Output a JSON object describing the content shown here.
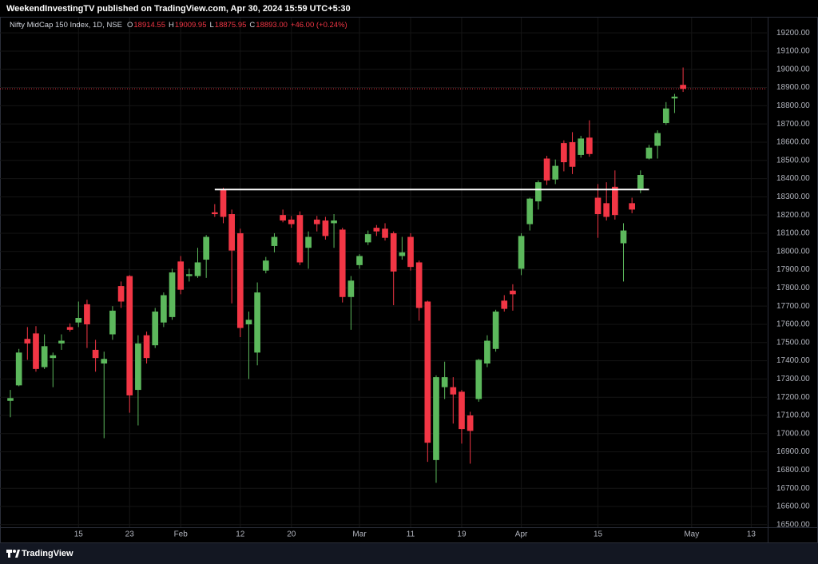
{
  "chart_data": {
    "type": "candlestick",
    "title": "WeekendInvestingTV published on TradingView.com, Apr 30, 2024 15:59 UTC+5:30",
    "symbol": "Nifty MidCap 150 Index, 1D, NSE",
    "ohlc_legend": [
      {
        "key": "O",
        "value": "18914.55"
      },
      {
        "key": "H",
        "value": "19009.95"
      },
      {
        "key": "L",
        "value": "18875.95"
      },
      {
        "key": "C",
        "value": "18893.00"
      }
    ],
    "change": "+46.00 (+0.24%)",
    "brand": "TradingView",
    "up_color": "#5cb85c",
    "down_color": "#f23645",
    "candles": {
      "open": [
        17180,
        17265,
        17520,
        17550,
        17365,
        17415,
        17495,
        17585,
        17610,
        17710,
        17460,
        17385,
        17545,
        17810,
        17865,
        17240,
        17540,
        17485,
        17610,
        17640,
        17945,
        17865,
        17865,
        17955,
        18215,
        18340,
        18205,
        18100,
        17600,
        17445,
        17895,
        18030,
        18200,
        18175,
        18200,
        18020,
        18175,
        18170,
        18155,
        18120,
        17750,
        17925,
        18050,
        18130,
        18125,
        18100,
        17975,
        18080,
        17940,
        17725,
        16855,
        17255,
        17255,
        17230,
        17100,
        17190,
        17385,
        17465,
        17730,
        17785,
        17905,
        18150,
        18275,
        18510,
        18395,
        18595,
        18600,
        18530,
        18625,
        18295,
        18265,
        18355,
        18045,
        18265,
        18345,
        18510,
        18580,
        18705,
        18840,
        18914.55
      ],
      "high": [
        17240,
        17465,
        17585,
        17590,
        17545,
        17445,
        17545,
        17605,
        17725,
        17735,
        17515,
        17450,
        17700,
        17835,
        17870,
        17540,
        17560,
        17690,
        17775,
        17905,
        17975,
        17905,
        18020,
        18090,
        18260,
        18350,
        18230,
        18125,
        17670,
        17830,
        17970,
        18100,
        18230,
        18195,
        18220,
        18110,
        18195,
        18190,
        18205,
        18130,
        17865,
        17985,
        18115,
        18145,
        18155,
        18110,
        18080,
        18100,
        17950,
        17730,
        17320,
        17395,
        17310,
        17240,
        17120,
        17410,
        17540,
        17680,
        17760,
        17820,
        18100,
        18295,
        18390,
        18525,
        18505,
        18610,
        18655,
        18635,
        18720,
        18370,
        18380,
        18445,
        18155,
        18295,
        18445,
        18585,
        18665,
        18820,
        18865,
        19009.95
      ],
      "low": [
        17090,
        17260,
        17405,
        17340,
        17355,
        17255,
        17460,
        17560,
        17585,
        17470,
        17340,
        16975,
        17515,
        17690,
        17115,
        17045,
        17385,
        17470,
        17585,
        17625,
        17765,
        17835,
        17855,
        17855,
        18190,
        18155,
        17715,
        17530,
        17300,
        17375,
        17880,
        17995,
        18160,
        18130,
        17925,
        17905,
        18110,
        18065,
        18020,
        17720,
        17570,
        17905,
        18035,
        18085,
        18060,
        17705,
        17955,
        17895,
        17620,
        16845,
        16730,
        17190,
        17055,
        16945,
        16835,
        17175,
        17365,
        17450,
        17670,
        17675,
        17870,
        18115,
        18230,
        18365,
        18370,
        18440,
        18425,
        18515,
        18520,
        18075,
        18170,
        18175,
        17835,
        18210,
        18320,
        18505,
        18510,
        18695,
        18760,
        18875.95
      ],
      "close": [
        17195,
        17445,
        17495,
        17355,
        17480,
        17430,
        17510,
        17570,
        17635,
        17600,
        17415,
        17410,
        17675,
        17725,
        17210,
        17495,
        17415,
        17670,
        17760,
        17885,
        17790,
        17875,
        17940,
        18080,
        18205,
        18190,
        18005,
        17580,
        17625,
        17775,
        17950,
        18080,
        18170,
        18150,
        17940,
        18080,
        18150,
        18085,
        18170,
        17750,
        17840,
        17975,
        18095,
        18110,
        18075,
        17890,
        17995,
        17915,
        17690,
        16950,
        17310,
        17310,
        17215,
        17025,
        17015,
        17405,
        17510,
        17670,
        17685,
        17765,
        18085,
        18290,
        18380,
        18390,
        18470,
        18490,
        18465,
        18620,
        18535,
        18205,
        18190,
        18200,
        18115,
        18230,
        18420,
        18570,
        18650,
        18785,
        18850,
        18893
      ]
    },
    "xlim": [
      -1.22,
      88.84
    ],
    "xticks": [
      {
        "value": 8,
        "label": "15"
      },
      {
        "value": 14,
        "label": "23"
      },
      {
        "value": 20,
        "label": "Feb"
      },
      {
        "value": 27,
        "label": "12"
      },
      {
        "value": 33,
        "label": "20"
      },
      {
        "value": 41,
        "label": "Mar"
      },
      {
        "value": 47,
        "label": "11"
      },
      {
        "value": 53,
        "label": "19"
      },
      {
        "value": 60,
        "label": "Apr"
      },
      {
        "value": 69,
        "label": "15"
      },
      {
        "value": 80,
        "label": "May"
      },
      {
        "value": 87,
        "label": "13"
      }
    ],
    "ylim": [
      16486,
      19284
    ],
    "yticks": [
      {
        "value": 16500,
        "label": "16500.00"
      },
      {
        "value": 16600,
        "label": "16600.00"
      },
      {
        "value": 16700,
        "label": "16700.00"
      },
      {
        "value": 16800,
        "label": "16800.00"
      },
      {
        "value": 16900,
        "label": "16900.00"
      },
      {
        "value": 17000,
        "label": "17000.00"
      },
      {
        "value": 17100,
        "label": "17100.00"
      },
      {
        "value": 17200,
        "label": "17200.00"
      },
      {
        "value": 17300,
        "label": "17300.00"
      },
      {
        "value": 17400,
        "label": "17400.00"
      },
      {
        "value": 17500,
        "label": "17500.00"
      },
      {
        "value": 17600,
        "label": "17600.00"
      },
      {
        "value": 17700,
        "label": "17700.00"
      },
      {
        "value": 17800,
        "label": "17800.00"
      },
      {
        "value": 17900,
        "label": "17900.00"
      },
      {
        "value": 18000,
        "label": "18000.00"
      },
      {
        "value": 18100,
        "label": "18100.00"
      },
      {
        "value": 18200,
        "label": "18200.00"
      },
      {
        "value": 18300,
        "label": "18300.00"
      },
      {
        "value": 18400,
        "label": "18400.00"
      },
      {
        "value": 18500,
        "label": "18500.00"
      },
      {
        "value": 18600,
        "label": "18600.00"
      },
      {
        "value": 18700,
        "label": "18700.00"
      },
      {
        "value": 18800,
        "label": "18800.00"
      },
      {
        "value": 18900,
        "label": "18900.00"
      },
      {
        "value": 19000,
        "label": "19000.00"
      },
      {
        "value": 19100,
        "label": "19100.00"
      },
      {
        "value": 19200,
        "label": "19200.00"
      }
    ],
    "grid": true,
    "trendline": {
      "value": 18340,
      "x": [
        24,
        75
      ],
      "color": "#ffffff"
    }
  }
}
